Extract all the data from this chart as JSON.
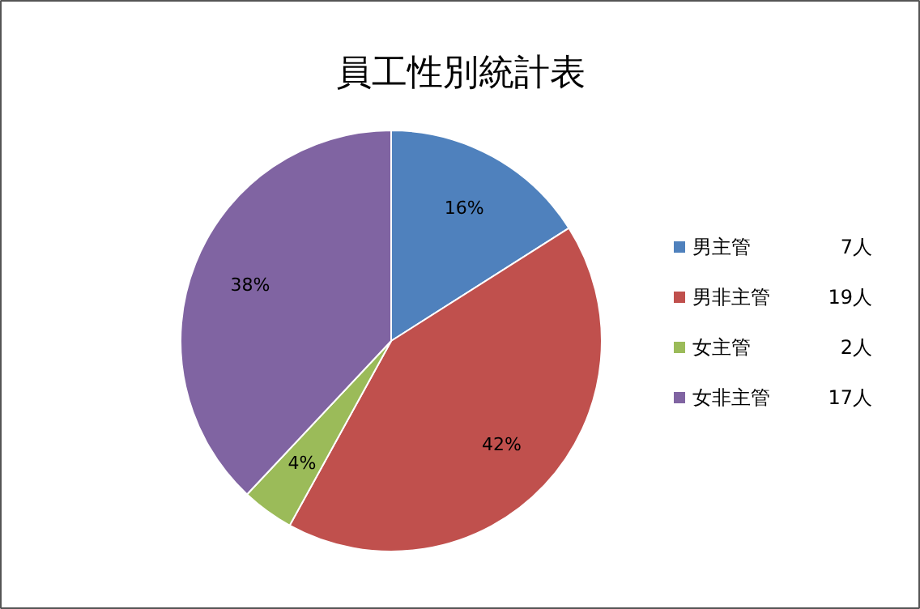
{
  "chart_data": {
    "type": "pie",
    "title": "員工性別統計表",
    "categories": [
      "男主管",
      "男非主管",
      "女主管",
      "女非主管"
    ],
    "values": [
      16,
      42,
      4,
      38
    ],
    "colors": [
      "#4f81bd",
      "#c0504d",
      "#9bbb59",
      "#8064a2"
    ],
    "value_labels": [
      "16%",
      "42%",
      "4%",
      "38%"
    ],
    "annotations": [
      "7人",
      "19人",
      "2人",
      "17人"
    ],
    "legend": "right"
  }
}
